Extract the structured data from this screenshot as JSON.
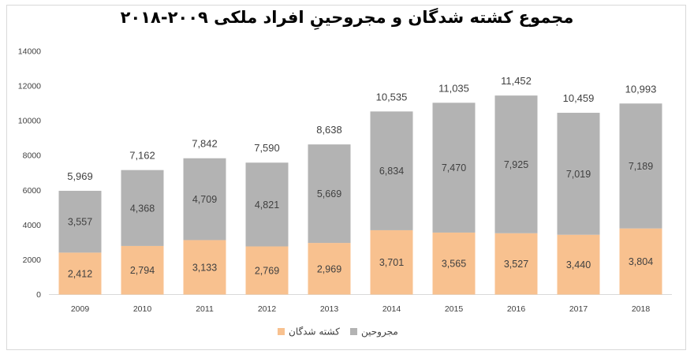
{
  "chart_data": {
    "type": "bar",
    "stacked": true,
    "title": "مجموع کشته شدگان و مجروحینِ افراد ملکی ۲۰۰۹-۲۰۱۸",
    "xlabel": "",
    "ylabel": "",
    "categories": [
      "2009",
      "2010",
      "2011",
      "2012",
      "2013",
      "2014",
      "2015",
      "2016",
      "2017",
      "2018"
    ],
    "series": [
      {
        "name": "کشته شدگان",
        "color": "#f8c18f",
        "values": [
          2412,
          2794,
          3133,
          2769,
          2969,
          3701,
          3565,
          3527,
          3440,
          3804
        ],
        "labels": [
          "2,412",
          "2,794",
          "3,133",
          "2,769",
          "2,969",
          "3,701",
          "3,565",
          "3,527",
          "3,440",
          "3,804"
        ]
      },
      {
        "name": "مجروحین",
        "color": "#b3b3b3",
        "values": [
          3557,
          4368,
          4709,
          4821,
          5669,
          6834,
          7470,
          7925,
          7019,
          7189
        ],
        "labels": [
          "3,557",
          "4,368",
          "4,709",
          "4,821",
          "5,669",
          "6,834",
          "7,470",
          "7,925",
          "7,019",
          "7,189"
        ]
      }
    ],
    "totals": [
      5969,
      7162,
      7842,
      7590,
      8638,
      10535,
      11035,
      11452,
      10459,
      10993
    ],
    "total_labels": [
      "5,969",
      "7,162",
      "7,842",
      "7,590",
      "8,638",
      "10,535",
      "11,035",
      "11,452",
      "10,459",
      "10,993"
    ],
    "ylim": [
      0,
      14000
    ],
    "yticks": [
      0,
      2000,
      4000,
      6000,
      8000,
      10000,
      12000,
      14000
    ],
    "ytick_labels": [
      "0",
      "2000",
      "4000",
      "6000",
      "8000",
      "10000",
      "12000",
      "14000"
    ],
    "grid": false,
    "legend_position": "bottom"
  }
}
